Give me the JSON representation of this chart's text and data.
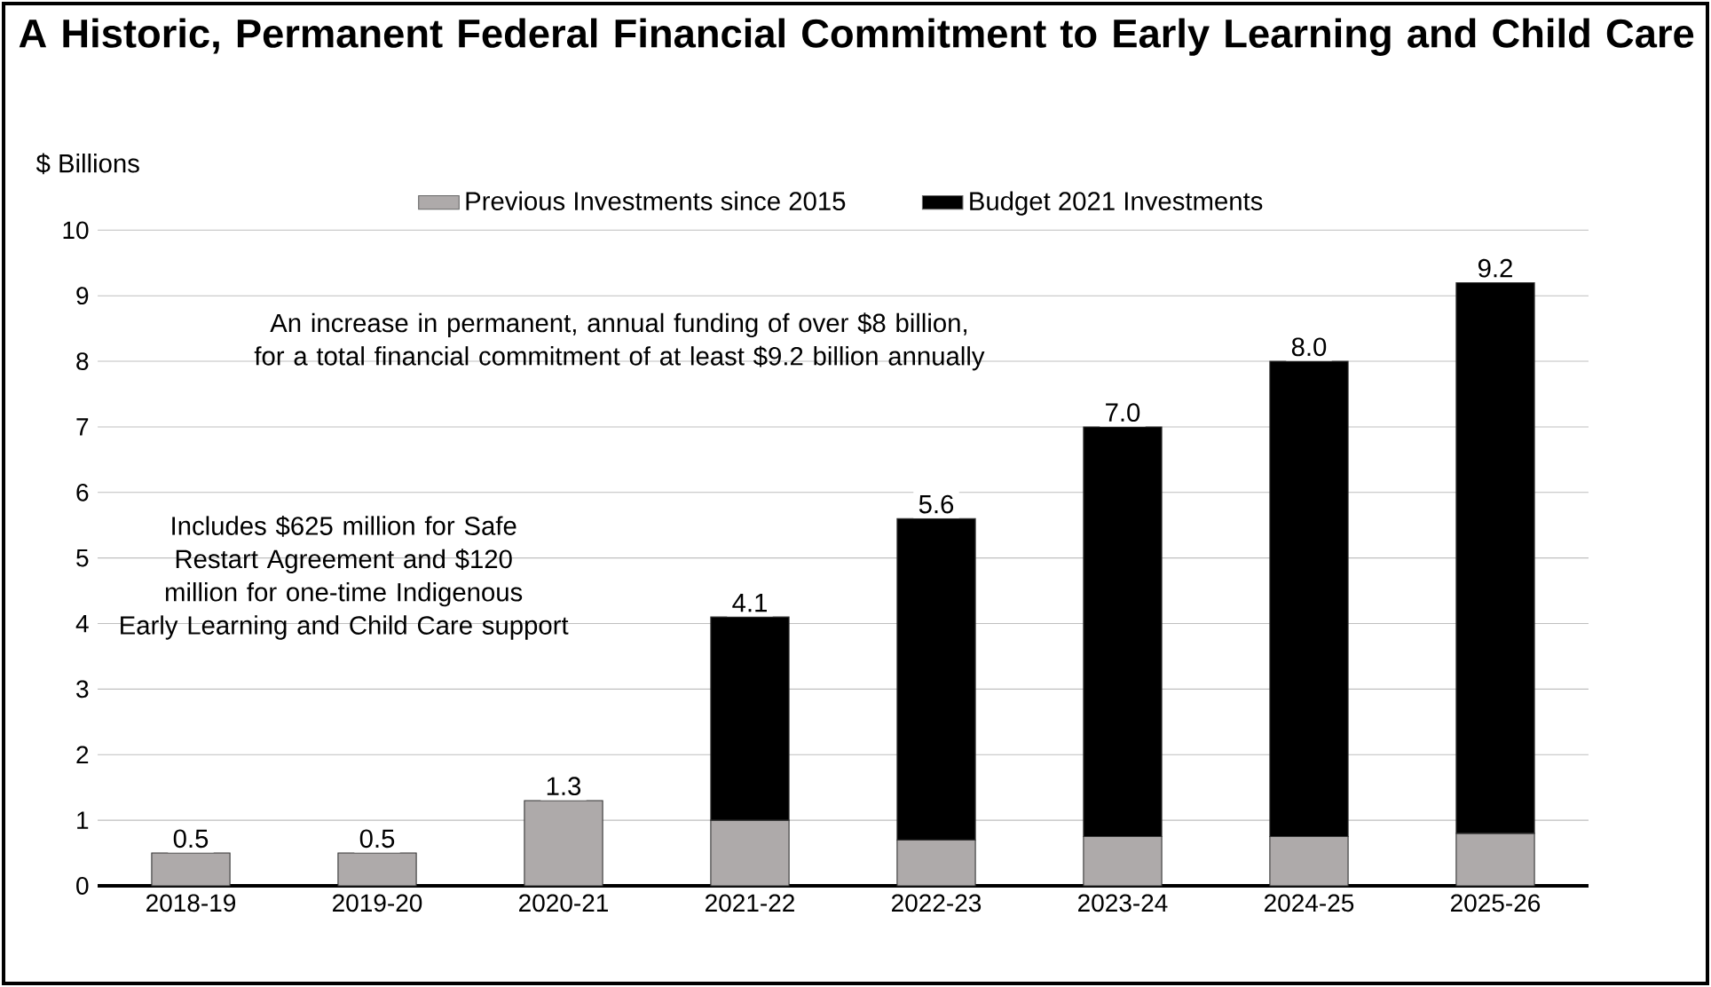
{
  "chart_data": {
    "type": "bar",
    "stacked": true,
    "title": "A Historic, Permanent Federal Financial Commitment to Early Learning and Child Care",
    "ylabel": "$ Billions",
    "categories": [
      "2018-19",
      "2019-20",
      "2020-21",
      "2021-22",
      "2022-23",
      "2023-24",
      "2024-25",
      "2025-26"
    ],
    "series": [
      {
        "name": "Previous Investments since 2015",
        "color": "#aeaaaa",
        "values": [
          0.5,
          0.5,
          1.3,
          1.0,
          0.7,
          0.75,
          0.75,
          0.8
        ]
      },
      {
        "name": "Budget 2021 Investments",
        "color": "#000000",
        "values": [
          null,
          null,
          null,
          3.1,
          4.9,
          6.25,
          7.25,
          8.4
        ]
      }
    ],
    "totals": [
      "0.5",
      "0.5",
      "1.3",
      "4.1",
      "5.6",
      "7.0",
      "8.0",
      "9.2"
    ],
    "ylim": [
      0,
      10
    ],
    "yticks": [
      0,
      1,
      2,
      3,
      4,
      5,
      6,
      7,
      8,
      9,
      10
    ],
    "grid": "y",
    "legend": "top",
    "annotations": [
      "An increase in permanent, annual funding of over $8 billion, for a total financial  commitment of at least $9.2 billion annually",
      "Includes $625 million for Safe Restart Agreement and $120 million for one-time Indigenous Early Learning and Child Care support"
    ]
  }
}
